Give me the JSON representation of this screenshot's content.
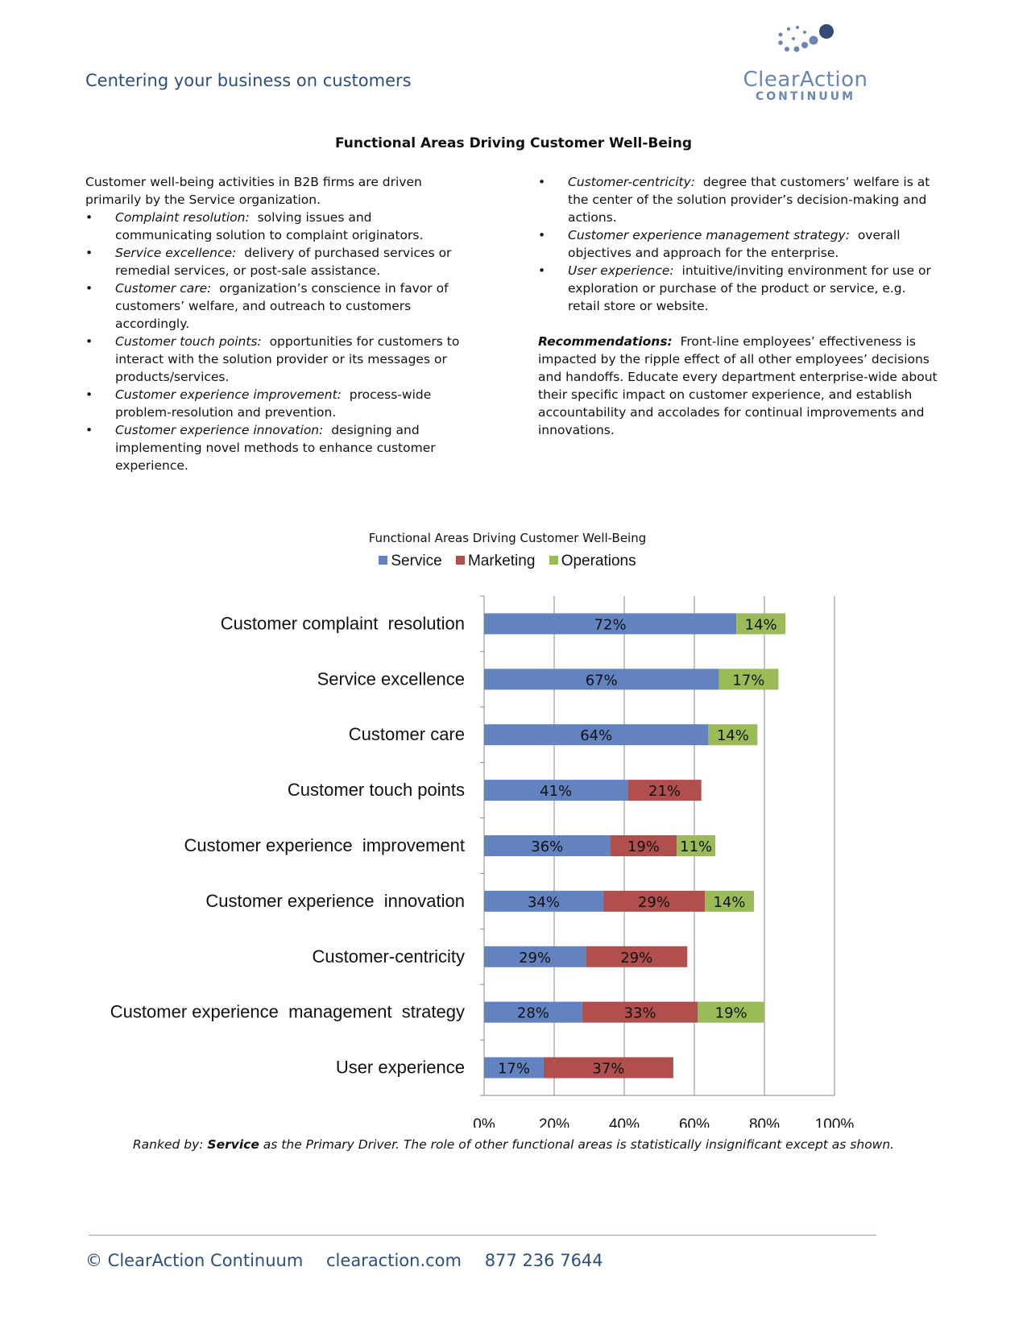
{
  "header": {
    "tagline": "Centering your business on customers",
    "logo_name": "ClearAction",
    "logo_sub": "CONTINUUM",
    "logo_color": "#6a86b5"
  },
  "document": {
    "title": "Functional Areas Driving Customer Well-Being",
    "intro": "Customer well-being activities in B2B firms are driven primarily by the Service organization.",
    "left_items": [
      {
        "term": "Complaint resolution:",
        "text": "solving issues and communicating solution to complaint originators."
      },
      {
        "term": "Service excellence:",
        "text": "delivery of purchased services or remedial services, or post-sale assistance."
      },
      {
        "term": "Customer care:",
        "text": "organization’s conscience in favor of customers’ welfare, and outreach to customers accordingly."
      },
      {
        "term": "Customer touch points:",
        "text": "opportunities for customers to interact with the solution provider or its messages or products/services."
      },
      {
        "term": "Customer experience improvement:",
        "text": "process-wide problem-resolution and prevention."
      },
      {
        "term": "Customer experience innovation:",
        "text": "designing and implementing novel methods to enhance customer experience."
      }
    ],
    "right_items": [
      {
        "term": "Customer-centricity:",
        "text": "degree that customers’ welfare is at the center of the solution provider’s decision-making and actions."
      },
      {
        "term": "Customer experience management strategy:",
        "text": "overall objectives and approach for the enterprise."
      },
      {
        "term": "User experience:",
        "text": "intuitive/inviting environment for use or exploration or purchase of the product or service, e.g. retail store or website."
      }
    ],
    "recommendations_label": "Recommendations:",
    "recommendations_text": "Front-line employees’ effectiveness is impacted by the ripple effect of all other employees’ decisions and handoffs.  Educate every department enterprise-wide about their specific impact on customer experience, and establish accountability and accolades for continual improvements and innovations."
  },
  "chart_data": {
    "type": "bar",
    "orientation": "horizontal",
    "stacked": true,
    "title": "Functional Areas Driving Customer Well-Being",
    "categories": [
      "Customer complaint  resolution",
      "Service excellence",
      "Customer care",
      "Customer touch points",
      "Customer experience  improvement",
      "Customer experience  innovation",
      "Customer-centricity",
      "Customer experience  management  strategy",
      "User experience"
    ],
    "series": [
      {
        "name": "Service",
        "color": "#6383c0",
        "values": [
          72,
          67,
          64,
          41,
          36,
          34,
          29,
          28,
          17
        ]
      },
      {
        "name": "Marketing",
        "color": "#b04f4e",
        "values": [
          0,
          0,
          0,
          21,
          19,
          29,
          29,
          33,
          37
        ]
      },
      {
        "name": "Operations",
        "color": "#9bbb59",
        "values": [
          14,
          17,
          14,
          0,
          11,
          14,
          0,
          19,
          0
        ]
      }
    ],
    "value_labels": [
      [
        "72%",
        "",
        "14%"
      ],
      [
        "67%",
        "",
        "17%"
      ],
      [
        "64%",
        "",
        "14%"
      ],
      [
        "41%",
        "21%",
        ""
      ],
      [
        "36%",
        "19%",
        "11%"
      ],
      [
        "34%",
        "29%",
        "14%"
      ],
      [
        "29%",
        "29%",
        ""
      ],
      [
        "28%",
        "33%",
        "19%"
      ],
      [
        "17%",
        "37%",
        ""
      ]
    ],
    "x_ticks": [
      "0%",
      "20%",
      "40%",
      "60%",
      "80%",
      "100%"
    ],
    "xlim": [
      0,
      100
    ],
    "grid": true,
    "legend_position": "top"
  },
  "caption": {
    "prefix": "Ranked by:",
    "emphasis": "Service",
    "suffix": "as the Primary Driver.  The role of other functional areas is statistically insignificant except as shown."
  },
  "footer": {
    "copyright": "© ClearAction Continuum",
    "website": "clearaction.com",
    "phone": "877 236 7644"
  }
}
